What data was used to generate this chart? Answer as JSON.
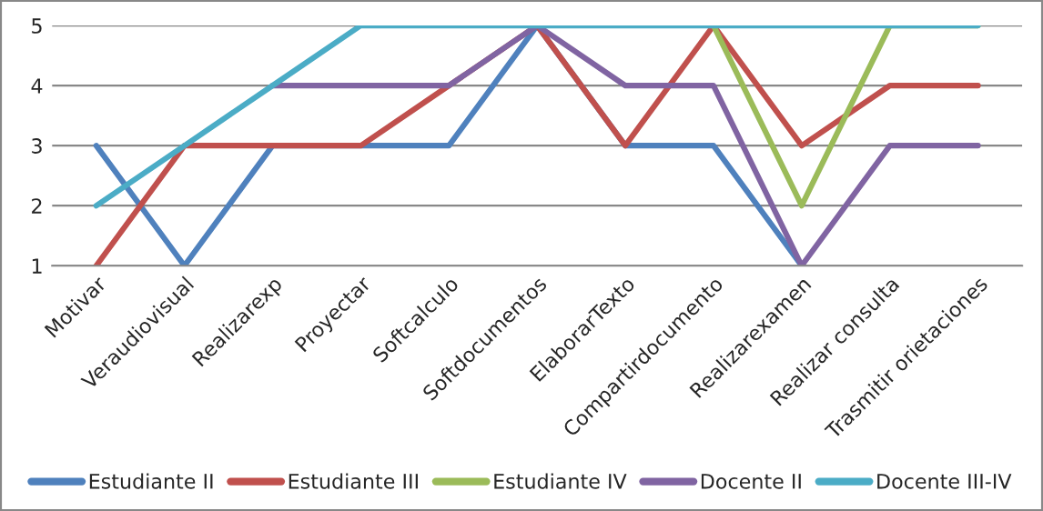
{
  "chart_data": {
    "type": "line",
    "categories": [
      "Motivar",
      "Veraudiovisual",
      "Realizarexp",
      "Proyectar",
      "Softcalculo",
      "Softdocumentos",
      "ElaborarTexto",
      "Compartirdocumento",
      "Realizarexamen",
      "Realizar consulta",
      "Trasmitir orietaciones"
    ],
    "series": [
      {
        "name": "Estudiante II",
        "color": "#4f81bd",
        "values": [
          3,
          1,
          3,
          3,
          3,
          5,
          3,
          3,
          1,
          null,
          null
        ]
      },
      {
        "name": "Estudiante III",
        "color": "#c0504d",
        "values": [
          1,
          3,
          3,
          3,
          4,
          5,
          3,
          5,
          3,
          4,
          4
        ]
      },
      {
        "name": "Estudiante IV",
        "color": "#9bbb59",
        "values": [
          null,
          null,
          null,
          null,
          null,
          null,
          null,
          5,
          2,
          5,
          5
        ]
      },
      {
        "name": "Docente II",
        "color": "#8064a2",
        "values": [
          null,
          null,
          4,
          4,
          4,
          5,
          4,
          4,
          1,
          3,
          3
        ]
      },
      {
        "name": "Docente III-IV",
        "color": "#4bacc6",
        "values": [
          2,
          3,
          4,
          5,
          5,
          5,
          5,
          5,
          5,
          5,
          5
        ]
      }
    ],
    "ylim": [
      1,
      5
    ],
    "yticks": [
      1,
      2,
      3,
      4,
      5
    ],
    "grid": "y",
    "legend": "bottom",
    "marker": "none",
    "line_style": "solid"
  }
}
